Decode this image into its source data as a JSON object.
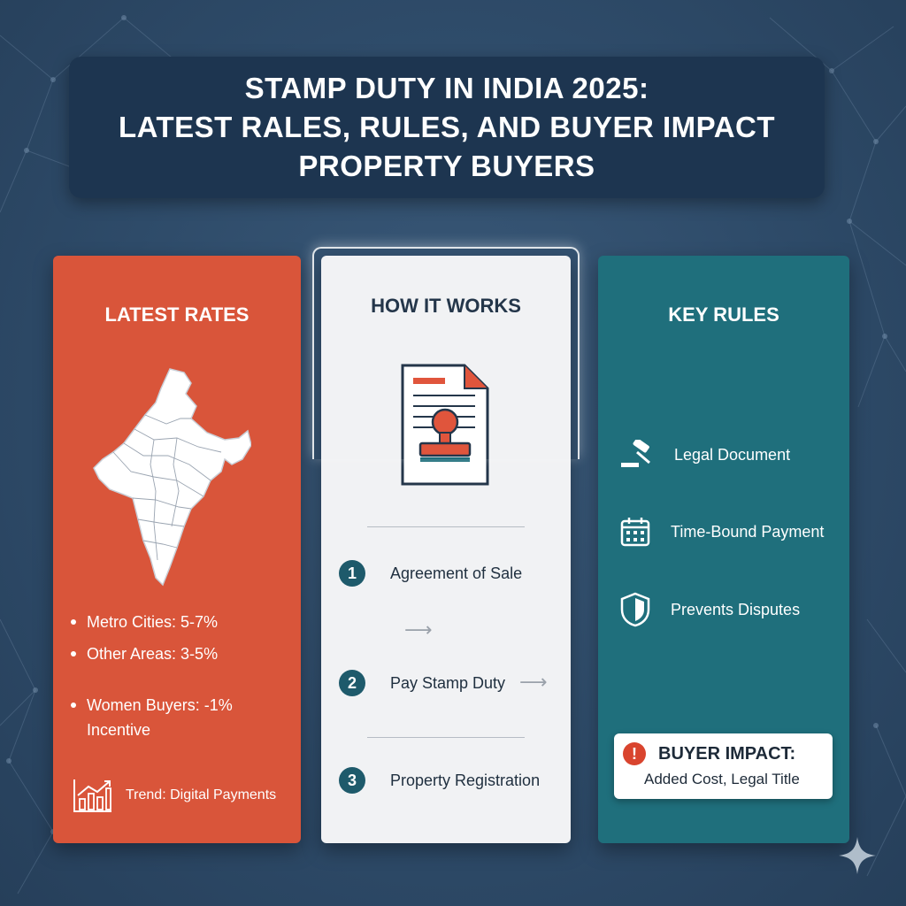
{
  "title": {
    "lines": [
      "STAMP DUTY IN INDIA 2025:",
      "LATEST RALES, RULES, AND BUYER IMPACT",
      "PROPERTY BUYERS"
    ]
  },
  "rates": {
    "heading": "LATEST RATES",
    "bullets": [
      "Metro Cities: 5-7%",
      "Other Areas: 3-5%",
      "Women Buyers: -1%",
      "Incentive"
    ],
    "trend": "Trend: Digital Payments"
  },
  "works": {
    "heading": "HOW IT WORKS",
    "steps": [
      {
        "num": "1",
        "label": "Agreement of Sale"
      },
      {
        "num": "2",
        "label": "Pay Stamp Duty"
      },
      {
        "num": "3",
        "label": "Property Registration"
      }
    ]
  },
  "rules": {
    "heading": "KEY RULES",
    "items": [
      {
        "label": "Legal Document",
        "icon": "gavel-icon"
      },
      {
        "label": "Time-Bound Payment",
        "icon": "calendar-icon"
      },
      {
        "label": "Prevents Disputes",
        "icon": "shield-icon"
      }
    ],
    "impact": {
      "icon": "!",
      "title": "BUYER IMPACT:",
      "text": "Added Cost, Legal Title"
    }
  },
  "colors": {
    "background": "#2e4b69",
    "title_box": "#1d3550",
    "rates_panel": "#d9553a",
    "works_panel": "#f1f2f4",
    "rules_panel": "#1f6f7c",
    "step_circle": "#1e5a6b"
  }
}
